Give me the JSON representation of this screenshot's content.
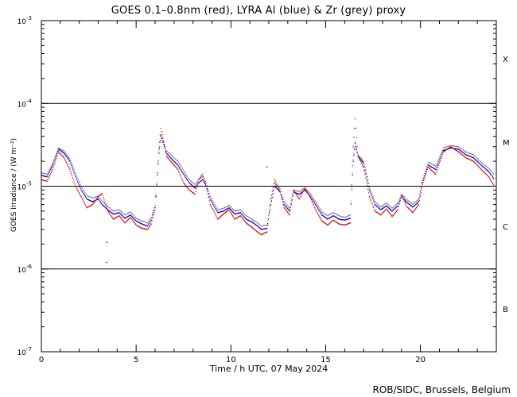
{
  "chart_data": {
    "type": "scatter",
    "title": "GOES 0.1–0.8nm (red), LYRA Al (blue) & Zr (grey) proxy",
    "xlabel": "Time / h UTC, 07 May 2024",
    "ylabel": "GOES Irradiance / (W m⁻²)",
    "xlim": [
      0,
      24
    ],
    "ylim": [
      1e-07,
      0.001
    ],
    "yscale": "log",
    "x_ticks": [
      "0",
      "5",
      "10",
      "15",
      "20"
    ],
    "y_ticks": [
      {
        "base": "10",
        "exp": "-3"
      },
      {
        "base": "10",
        "exp": "-4"
      },
      {
        "base": "10",
        "exp": "-5"
      },
      {
        "base": "10",
        "exp": "-6"
      },
      {
        "base": "10",
        "exp": "-7"
      }
    ],
    "flare_classes": [
      "X",
      "M",
      "C",
      "B"
    ],
    "class_thresholds": [
      0.0001,
      1e-05,
      1e-06
    ],
    "colors": {
      "goes": "#dd0000",
      "lyra_al": "#0000cc",
      "lyra_zr": "#888888",
      "axes": "#000000"
    },
    "series": [
      {
        "name": "GOES 0.1-0.8nm",
        "color": "red",
        "points": [
          [
            0.0,
            1.2e-05
          ],
          [
            0.3,
            1.15e-05
          ],
          [
            0.6,
            1.6e-05
          ],
          [
            0.9,
            2.6e-05
          ],
          [
            1.2,
            2.2e-05
          ],
          [
            1.5,
            1.6e-05
          ],
          [
            1.8,
            1e-05
          ],
          [
            2.1,
            7.5e-06
          ],
          [
            2.4,
            5.5e-06
          ],
          [
            2.7,
            6e-06
          ],
          [
            3.0,
            7.5e-06
          ],
          [
            3.2,
            8.2e-06
          ],
          [
            3.5,
            5e-06
          ],
          [
            3.8,
            4e-06
          ],
          [
            4.1,
            4.4e-06
          ],
          [
            4.4,
            3.6e-06
          ],
          [
            4.7,
            4.2e-06
          ],
          [
            5.0,
            3.4e-06
          ],
          [
            5.3,
            3.1e-06
          ],
          [
            5.6,
            3e-06
          ],
          [
            5.8,
            3.5e-06
          ],
          [
            6.0,
            5.5e-06
          ],
          [
            6.2,
            2.8e-05
          ],
          [
            6.3,
            5e-05
          ],
          [
            6.45,
            3.5e-05
          ],
          [
            6.6,
            2.3e-05
          ],
          [
            6.9,
            1.9e-05
          ],
          [
            7.2,
            1.6e-05
          ],
          [
            7.5,
            1.1e-05
          ],
          [
            7.8,
            9e-06
          ],
          [
            8.1,
            8e-06
          ],
          [
            8.3,
            1.2e-05
          ],
          [
            8.5,
            1.4e-05
          ],
          [
            8.7,
            1e-05
          ],
          [
            8.9,
            6e-06
          ],
          [
            9.1,
            5e-06
          ],
          [
            9.3,
            4e-06
          ],
          [
            9.6,
            4.6e-06
          ],
          [
            9.9,
            5.2e-06
          ],
          [
            10.2,
            4e-06
          ],
          [
            10.5,
            4.4e-06
          ],
          [
            10.8,
            3.6e-06
          ],
          [
            11.1,
            3.2e-06
          ],
          [
            11.4,
            2.8e-06
          ],
          [
            11.6,
            2.6e-06
          ],
          [
            11.9,
            2.8e-06
          ],
          [
            12.1,
            7e-06
          ],
          [
            12.3,
            1.2e-05
          ],
          [
            12.6,
            8.5e-06
          ],
          [
            12.8,
            5.5e-06
          ],
          [
            13.1,
            4.5e-06
          ],
          [
            13.3,
            9e-06
          ],
          [
            13.6,
            7e-06
          ],
          [
            13.9,
            9.5e-06
          ],
          [
            14.2,
            7.2e-06
          ],
          [
            14.5,
            5e-06
          ],
          [
            14.8,
            3.8e-06
          ],
          [
            15.1,
            3.4e-06
          ],
          [
            15.4,
            3.9e-06
          ],
          [
            15.7,
            3.5e-06
          ],
          [
            16.0,
            3.4e-06
          ],
          [
            16.3,
            3.6e-06
          ],
          [
            16.45,
            3e-05
          ],
          [
            16.55,
            6.5e-05
          ],
          [
            16.7,
            2.3e-05
          ],
          [
            17.0,
            1.7e-05
          ],
          [
            17.3,
            7.5e-06
          ],
          [
            17.6,
            5e-06
          ],
          [
            17.9,
            4.5e-06
          ],
          [
            18.2,
            5.3e-06
          ],
          [
            18.5,
            4.3e-06
          ],
          [
            18.8,
            5.2e-06
          ],
          [
            19.0,
            7.8e-06
          ],
          [
            19.3,
            5.6e-06
          ],
          [
            19.6,
            4.8e-06
          ],
          [
            19.9,
            6e-06
          ],
          [
            20.1,
            1.05e-05
          ],
          [
            20.4,
            1.7e-05
          ],
          [
            20.8,
            1.4e-05
          ],
          [
            21.2,
            2.6e-05
          ],
          [
            21.6,
            3e-05
          ],
          [
            22.0,
            2.6e-05
          ],
          [
            22.4,
            2.2e-05
          ],
          [
            22.8,
            2e-05
          ],
          [
            23.2,
            1.6e-05
          ],
          [
            23.6,
            1.3e-05
          ],
          [
            23.9,
            1e-05
          ]
        ]
      },
      {
        "name": "LYRA Al proxy",
        "color": "blue",
        "points": [
          [
            0.0,
            1.35e-05
          ],
          [
            0.3,
            1.3e-05
          ],
          [
            0.6,
            1.8e-05
          ],
          [
            0.9,
            2.8e-05
          ],
          [
            1.2,
            2.5e-05
          ],
          [
            1.5,
            2e-05
          ],
          [
            1.8,
            1.3e-05
          ],
          [
            2.1,
            9e-06
          ],
          [
            2.4,
            7e-06
          ],
          [
            2.7,
            6.5e-06
          ],
          [
            3.0,
            7e-06
          ],
          [
            3.2,
            6e-06
          ],
          [
            3.5,
            5.2e-06
          ],
          [
            3.8,
            4.6e-06
          ],
          [
            4.1,
            4.8e-06
          ],
          [
            4.4,
            4.1e-06
          ],
          [
            4.7,
            4.5e-06
          ],
          [
            5.0,
            3.8e-06
          ],
          [
            5.3,
            3.5e-06
          ],
          [
            5.6,
            3.3e-06
          ],
          [
            5.8,
            3.9e-06
          ],
          [
            6.0,
            5.5e-06
          ],
          [
            6.2,
            2.5e-05
          ],
          [
            6.3,
            4e-05
          ],
          [
            6.45,
            3.2e-05
          ],
          [
            6.6,
            2.5e-05
          ],
          [
            6.9,
            2.1e-05
          ],
          [
            7.2,
            1.8e-05
          ],
          [
            7.5,
            1.4e-05
          ],
          [
            7.8,
            1.1e-05
          ],
          [
            8.1,
            9.5e-06
          ],
          [
            8.3,
            1.1e-05
          ],
          [
            8.5,
            1.2e-05
          ],
          [
            8.7,
            1e-05
          ],
          [
            8.9,
            7e-06
          ],
          [
            9.1,
            5.8e-06
          ],
          [
            9.3,
            4.8e-06
          ],
          [
            9.6,
            5e-06
          ],
          [
            9.9,
            5.5e-06
          ],
          [
            10.2,
            4.6e-06
          ],
          [
            10.5,
            4.8e-06
          ],
          [
            10.8,
            4e-06
          ],
          [
            11.1,
            3.7e-06
          ],
          [
            11.4,
            3.3e-06
          ],
          [
            11.6,
            3e-06
          ],
          [
            11.9,
            3.1e-06
          ],
          [
            12.1,
            6e-06
          ],
          [
            12.3,
            1e-05
          ],
          [
            12.6,
            8.5e-06
          ],
          [
            12.8,
            6e-06
          ],
          [
            13.1,
            5e-06
          ],
          [
            13.3,
            8.5e-06
          ],
          [
            13.6,
            8e-06
          ],
          [
            13.9,
            9e-06
          ],
          [
            14.2,
            7.5e-06
          ],
          [
            14.5,
            5.8e-06
          ],
          [
            14.8,
            4.5e-06
          ],
          [
            15.1,
            4e-06
          ],
          [
            15.4,
            4.4e-06
          ],
          [
            15.7,
            4e-06
          ],
          [
            16.0,
            3.9e-06
          ],
          [
            16.3,
            4.1e-06
          ],
          [
            16.45,
            2e-05
          ],
          [
            16.55,
            3.3e-05
          ],
          [
            16.7,
            2.3e-05
          ],
          [
            17.0,
            1.9e-05
          ],
          [
            17.3,
            9e-06
          ],
          [
            17.6,
            6e-06
          ],
          [
            17.9,
            5.2e-06
          ],
          [
            18.2,
            5.8e-06
          ],
          [
            18.5,
            5e-06
          ],
          [
            18.8,
            5.8e-06
          ],
          [
            19.0,
            7.5e-06
          ],
          [
            19.3,
            6.3e-06
          ],
          [
            19.6,
            5.6e-06
          ],
          [
            19.9,
            6.5e-06
          ],
          [
            20.1,
            1.1e-05
          ],
          [
            20.4,
            1.8e-05
          ],
          [
            20.8,
            1.6e-05
          ],
          [
            21.2,
            2.7e-05
          ],
          [
            21.6,
            2.9e-05
          ],
          [
            22.0,
            2.8e-05
          ],
          [
            22.4,
            2.4e-05
          ],
          [
            22.8,
            2.2e-05
          ],
          [
            23.2,
            1.8e-05
          ],
          [
            23.6,
            1.5e-05
          ],
          [
            23.9,
            1.2e-05
          ]
        ]
      },
      {
        "name": "LYRA Zr proxy",
        "color": "grey",
        "points": [
          [
            0.0,
            1.45e-05
          ],
          [
            0.3,
            1.4e-05
          ],
          [
            0.6,
            1.9e-05
          ],
          [
            0.9,
            2.9e-05
          ],
          [
            1.2,
            2.65e-05
          ],
          [
            1.5,
            2.15e-05
          ],
          [
            1.8,
            1.45e-05
          ],
          [
            2.1,
            1e-05
          ],
          [
            2.4,
            7.7e-06
          ],
          [
            2.7,
            7.2e-06
          ],
          [
            3.0,
            7.6e-06
          ],
          [
            3.2,
            6.6e-06
          ],
          [
            3.5,
            5.7e-06
          ],
          [
            3.8,
            5e-06
          ],
          [
            4.1,
            5.2e-06
          ],
          [
            4.4,
            4.5e-06
          ],
          [
            4.7,
            4.9e-06
          ],
          [
            5.0,
            4.1e-06
          ],
          [
            5.3,
            3.8e-06
          ],
          [
            5.6,
            3.6e-06
          ],
          [
            5.8,
            4.2e-06
          ],
          [
            6.0,
            5.9e-06
          ],
          [
            6.2,
            2.6e-05
          ],
          [
            6.3,
            4.2e-05
          ],
          [
            6.45,
            3.4e-05
          ],
          [
            6.6,
            2.7e-05
          ],
          [
            6.9,
            2.3e-05
          ],
          [
            7.2,
            2e-05
          ],
          [
            7.5,
            1.55e-05
          ],
          [
            7.8,
            1.2e-05
          ],
          [
            8.1,
            1.05e-05
          ],
          [
            8.3,
            1.2e-05
          ],
          [
            8.5,
            1.3e-05
          ],
          [
            8.7,
            1.1e-05
          ],
          [
            8.9,
            7.6e-06
          ],
          [
            9.1,
            6.3e-06
          ],
          [
            9.3,
            5.2e-06
          ],
          [
            9.6,
            5.4e-06
          ],
          [
            9.9,
            5.9e-06
          ],
          [
            10.2,
            5e-06
          ],
          [
            10.5,
            5.2e-06
          ],
          [
            10.8,
            4.4e-06
          ],
          [
            11.1,
            4e-06
          ],
          [
            11.4,
            3.6e-06
          ],
          [
            11.6,
            3.3e-06
          ],
          [
            11.9,
            3.4e-06
          ],
          [
            12.1,
            6.5e-06
          ],
          [
            12.3,
            1.08e-05
          ],
          [
            12.6,
            9.2e-06
          ],
          [
            12.8,
            6.5e-06
          ],
          [
            13.1,
            5.4e-06
          ],
          [
            13.3,
            9e-06
          ],
          [
            13.6,
            8.6e-06
          ],
          [
            13.9,
            9.6e-06
          ],
          [
            14.2,
            8.1e-06
          ],
          [
            14.5,
            6.3e-06
          ],
          [
            14.8,
            4.9e-06
          ],
          [
            15.1,
            4.4e-06
          ],
          [
            15.4,
            4.8e-06
          ],
          [
            15.7,
            4.4e-06
          ],
          [
            16.0,
            4.2e-06
          ],
          [
            16.3,
            4.5e-06
          ],
          [
            16.45,
            2.1e-05
          ],
          [
            16.55,
            3.4e-05
          ],
          [
            16.7,
            2.4e-05
          ],
          [
            17.0,
            2e-05
          ],
          [
            17.3,
            9.8e-06
          ],
          [
            17.6,
            6.5e-06
          ],
          [
            17.9,
            5.6e-06
          ],
          [
            18.2,
            6.3e-06
          ],
          [
            18.5,
            5.4e-06
          ],
          [
            18.8,
            6.3e-06
          ],
          [
            19.0,
            8e-06
          ],
          [
            19.3,
            6.8e-06
          ],
          [
            19.6,
            6.1e-06
          ],
          [
            19.9,
            7e-06
          ],
          [
            20.1,
            1.2e-05
          ],
          [
            20.4,
            1.95e-05
          ],
          [
            20.8,
            1.75e-05
          ],
          [
            21.2,
            2.9e-05
          ],
          [
            21.6,
            3.1e-05
          ],
          [
            22.0,
            3e-05
          ],
          [
            22.4,
            2.6e-05
          ],
          [
            22.8,
            2.4e-05
          ],
          [
            23.2,
            1.95e-05
          ],
          [
            23.6,
            1.65e-05
          ],
          [
            23.9,
            1.35e-05
          ]
        ]
      }
    ],
    "outliers": [
      [
        3.45,
        2.1e-06
      ],
      [
        3.45,
        1.2e-06
      ],
      [
        11.9,
        1.7e-05
      ]
    ]
  },
  "footer": "ROB/SIDC, Brussels, Belgium"
}
